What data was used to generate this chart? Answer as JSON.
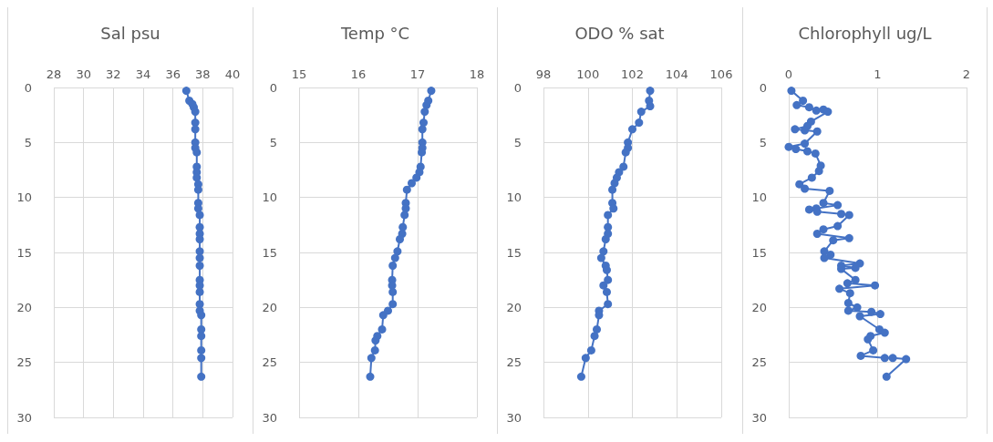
{
  "chart_data": [
    {
      "type": "line",
      "title": "Sal psu",
      "color": "#4472c4",
      "marker": "circle",
      "grid": true,
      "xlim": [
        28,
        40
      ],
      "xticks": [
        28,
        30,
        32,
        34,
        36,
        38,
        40
      ],
      "ylim": [
        30,
        0
      ],
      "yticks": [
        0,
        5,
        10,
        15,
        20,
        25,
        30
      ],
      "x": [
        36.9,
        37.1,
        37.3,
        37.4,
        37.5,
        37.5,
        37.5,
        37.5,
        37.5,
        37.6,
        37.6,
        37.6,
        37.6,
        37.7,
        37.7,
        37.7,
        37.7,
        37.8,
        37.8,
        37.8,
        37.8,
        37.8,
        37.8,
        37.8,
        37.8,
        37.8,
        37.8,
        37.8,
        37.8,
        37.9,
        37.9,
        37.9,
        37.9,
        37.9,
        37.9
      ],
      "values": [
        0.3,
        1.2,
        1.5,
        1.8,
        2.2,
        3.2,
        3.8,
        5.0,
        5.5,
        5.9,
        7.2,
        7.7,
        8.2,
        8.8,
        9.3,
        10.5,
        11.0,
        11.6,
        12.7,
        13.3,
        13.8,
        14.9,
        15.5,
        16.2,
        17.5,
        18.0,
        18.6,
        19.7,
        20.3,
        20.7,
        22.0,
        22.6,
        23.9,
        24.6,
        26.3
      ]
    },
    {
      "type": "line",
      "title": "Temp °C",
      "color": "#4472c4",
      "marker": "circle",
      "grid": true,
      "xlim": [
        15,
        18
      ],
      "xticks": [
        15,
        16,
        17,
        18
      ],
      "ylim": [
        30,
        0
      ],
      "yticks": [
        0,
        5,
        10,
        15,
        20,
        25,
        30
      ],
      "x": [
        17.23,
        17.18,
        17.15,
        17.12,
        17.1,
        17.08,
        17.08,
        17.08,
        17.07,
        17.05,
        17.03,
        16.98,
        16.9,
        16.82,
        16.8,
        16.8,
        16.78,
        16.75,
        16.74,
        16.7,
        16.66,
        16.62,
        16.58,
        16.57,
        16.57,
        16.58,
        16.58,
        16.5,
        16.42,
        16.4,
        16.32,
        16.29,
        16.28,
        16.22,
        16.2
      ],
      "values": [
        0.3,
        1.2,
        1.6,
        2.2,
        3.2,
        3.8,
        5.0,
        5.5,
        5.9,
        7.2,
        7.7,
        8.2,
        8.7,
        9.3,
        10.5,
        11.0,
        11.6,
        12.7,
        13.3,
        13.8,
        14.9,
        15.5,
        16.2,
        17.5,
        18.0,
        18.6,
        19.7,
        20.3,
        20.7,
        22.0,
        22.6,
        23.0,
        23.9,
        24.6,
        26.3
      ]
    },
    {
      "type": "line",
      "title": "ODO % sat",
      "color": "#4472c4",
      "marker": "circle",
      "grid": true,
      "xlim": [
        98,
        106
      ],
      "xticks": [
        98,
        100,
        102,
        104,
        106
      ],
      "ylim": [
        30,
        0
      ],
      "yticks": [
        0,
        5,
        10,
        15,
        20,
        25,
        30
      ],
      "x": [
        102.8,
        102.75,
        102.8,
        102.4,
        102.3,
        102.0,
        101.8,
        101.8,
        101.7,
        101.6,
        101.4,
        101.3,
        101.2,
        101.1,
        101.1,
        101.15,
        100.9,
        100.9,
        100.9,
        100.8,
        100.7,
        100.6,
        100.8,
        100.85,
        100.9,
        100.7,
        100.85,
        100.9,
        100.5,
        100.5,
        100.4,
        100.3,
        100.15,
        99.9,
        99.7
      ],
      "values": [
        0.3,
        1.2,
        1.7,
        2.2,
        3.2,
        3.8,
        5.0,
        5.5,
        5.9,
        7.2,
        7.7,
        8.2,
        8.7,
        9.3,
        10.5,
        11.0,
        11.6,
        12.7,
        13.3,
        13.8,
        14.9,
        15.5,
        16.2,
        16.6,
        17.5,
        18.0,
        18.6,
        19.7,
        20.3,
        20.7,
        22.0,
        22.6,
        23.9,
        24.6,
        26.3
      ]
    },
    {
      "type": "line",
      "title": "Chlorophyll ug/L",
      "color": "#4472c4",
      "marker": "circle",
      "grid": true,
      "xlim": [
        0,
        2
      ],
      "xticks": [
        0,
        1,
        2
      ],
      "ylim": [
        30,
        0
      ],
      "yticks": [
        0,
        5,
        10,
        15,
        20,
        25,
        30
      ],
      "x": [
        0.03,
        0.16,
        0.09,
        0.23,
        0.31,
        0.39,
        0.44,
        0.25,
        0.21,
        0.07,
        0.18,
        0.32,
        0.18,
        0.0,
        0.08,
        0.21,
        0.3,
        0.36,
        0.34,
        0.26,
        0.12,
        0.18,
        0.46,
        0.39,
        0.55,
        0.31,
        0.23,
        0.32,
        0.59,
        0.68,
        0.55,
        0.39,
        0.32,
        0.68,
        0.5,
        0.4,
        0.47,
        0.4,
        0.8,
        0.59,
        0.75,
        0.59,
        0.75,
        0.66,
        0.97,
        0.57,
        0.69,
        0.67,
        0.77,
        0.67,
        0.93,
        1.03,
        0.8,
        1.02,
        1.08,
        0.92,
        0.89,
        0.95,
        0.81,
        1.08,
        1.17,
        1.32,
        1.1
      ],
      "values": [
        0.3,
        1.2,
        1.6,
        1.8,
        2.1,
        2.0,
        2.2,
        3.1,
        3.5,
        3.8,
        3.9,
        4.0,
        5.1,
        5.4,
        5.6,
        5.8,
        6.0,
        7.1,
        7.6,
        8.2,
        8.8,
        9.2,
        9.4,
        10.5,
        10.7,
        11.0,
        11.1,
        11.3,
        11.5,
        11.6,
        12.6,
        12.9,
        13.3,
        13.7,
        13.9,
        14.9,
        15.2,
        15.5,
        16.0,
        16.2,
        16.4,
        16.5,
        17.5,
        17.8,
        18.0,
        18.3,
        18.7,
        19.6,
        20.0,
        20.3,
        20.4,
        20.6,
        20.8,
        22.0,
        22.3,
        22.6,
        22.9,
        23.9,
        24.4,
        24.6,
        24.6,
        24.7,
        26.3
      ]
    }
  ]
}
